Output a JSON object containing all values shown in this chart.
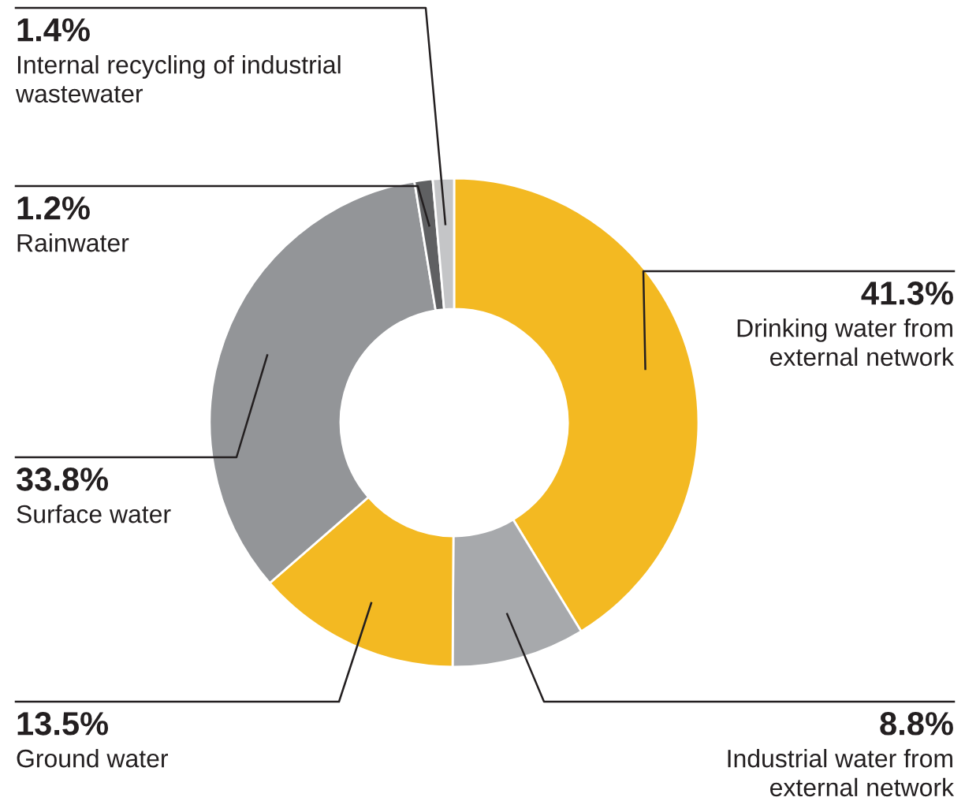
{
  "chart_data": {
    "type": "donut",
    "categories": [
      "Drinking water from\nexternal network",
      "Industrial water from\nexternal network",
      "Ground water",
      "Surface water",
      "Rainwater",
      "Internal recycling of industrial\nwastewater"
    ],
    "values": [
      41.3,
      8.8,
      13.5,
      33.8,
      1.2,
      1.4
    ],
    "value_labels": [
      "41.3%",
      "8.8%",
      "13.5%",
      "33.8%",
      "1.2%",
      "1.4%"
    ],
    "colors": [
      "#f3b922",
      "#a7a9ac",
      "#f3b922",
      "#939598",
      "#5f6062",
      "#c4c5c7"
    ]
  }
}
